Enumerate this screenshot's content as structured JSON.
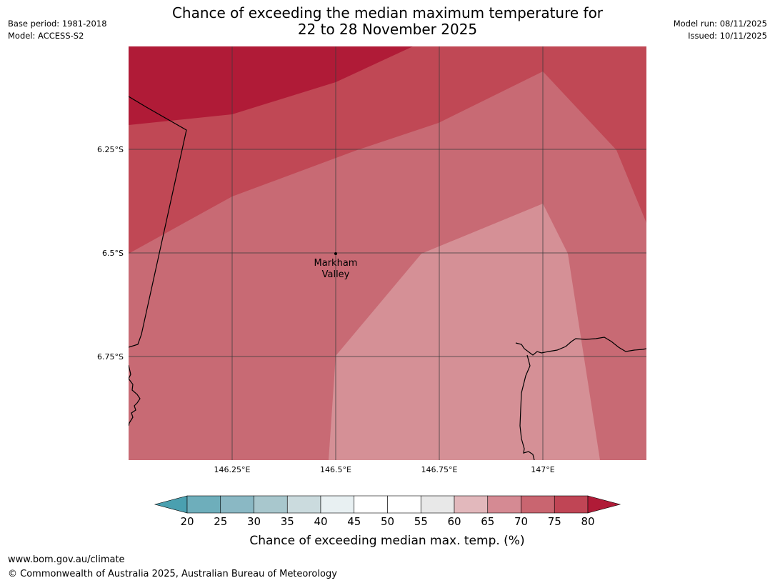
{
  "header": {
    "title_line1": "Chance of exceeding the median maximum temperature for",
    "title_line2": "22 to 28 November 2025",
    "base_period": "Base period: 1981-2018",
    "model": "Model: ACCESS-S2",
    "model_run": "Model run: 08/11/2025",
    "issued": "Issued: 10/11/2025"
  },
  "map": {
    "lat_labels": [
      "6.25°S",
      "6.5°S",
      "6.75°S"
    ],
    "lon_labels": [
      "146.25°E",
      "146.5°E",
      "146.75°E",
      "147°E"
    ],
    "place": {
      "name_line1": "Markham",
      "name_line2": "Valley"
    },
    "region_colors": {
      "band_75_80": "#b01b37",
      "band_70_75": "#c04855",
      "band_65_70": "#c86a74",
      "band_60_65": "#d59096"
    }
  },
  "colorbar": {
    "ticks": [
      "20",
      "25",
      "30",
      "35",
      "40",
      "45",
      "50",
      "55",
      "60",
      "65",
      "70",
      "75",
      "80"
    ],
    "colors": [
      "#4aa0b0",
      "#6eaebb",
      "#8ab8c4",
      "#a8c7cd",
      "#cbdbde",
      "#e8f0f2",
      "#ffffff",
      "#ffffff",
      "#e8e8e8",
      "#e2b8bc",
      "#d58a93",
      "#c96570",
      "#c04555",
      "#b01b37"
    ],
    "label": "Chance of exceeding median max. temp. (%)"
  },
  "footer": {
    "url": "www.bom.gov.au/climate",
    "copyright": "© Commonwealth of Australia 2025, Australian Bureau of Meteorology"
  }
}
